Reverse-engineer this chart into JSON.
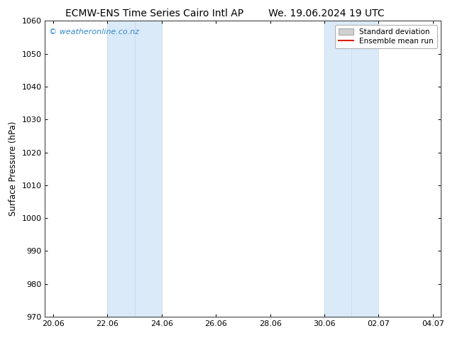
{
  "title_left": "ECMW-ENS Time Series Cairo Intl AP",
  "title_right": "We. 19.06.2024 19 UTC",
  "ylabel": "Surface Pressure (hPa)",
  "ylim": [
    970,
    1060
  ],
  "yticks": [
    970,
    980,
    990,
    1000,
    1010,
    1020,
    1030,
    1040,
    1050,
    1060
  ],
  "xtick_labels": [
    "20.06",
    "22.06",
    "24.06",
    "26.06",
    "28.06",
    "30.06",
    "02.07",
    "04.07"
  ],
  "xtick_positions": [
    0,
    2,
    4,
    6,
    8,
    10,
    12,
    14
  ],
  "xlim": [
    -0.3,
    14.3
  ],
  "shaded_regions": [
    {
      "x_start": 2,
      "x_end": 3,
      "color": "#daeaf8"
    },
    {
      "x_start": 3,
      "x_end": 4,
      "color": "#daeaf8"
    },
    {
      "x_start": 10,
      "x_end": 11,
      "color": "#daeaf8"
    },
    {
      "x_start": 11,
      "x_end": 12,
      "color": "#daeaf8"
    }
  ],
  "shade_borders": [
    2,
    3,
    4,
    10,
    11,
    12
  ],
  "watermark_text": "© weatheronline.co.nz",
  "watermark_color": "#3388cc",
  "legend_std_dev_color": "#d0d0d0",
  "legend_std_dev_edge": "#aaaaaa",
  "legend_mean_color": "#dd2200",
  "background_color": "#ffffff",
  "title_fontsize": 10,
  "axis_label_fontsize": 8.5,
  "tick_fontsize": 8,
  "legend_fontsize": 7.5,
  "watermark_fontsize": 8
}
